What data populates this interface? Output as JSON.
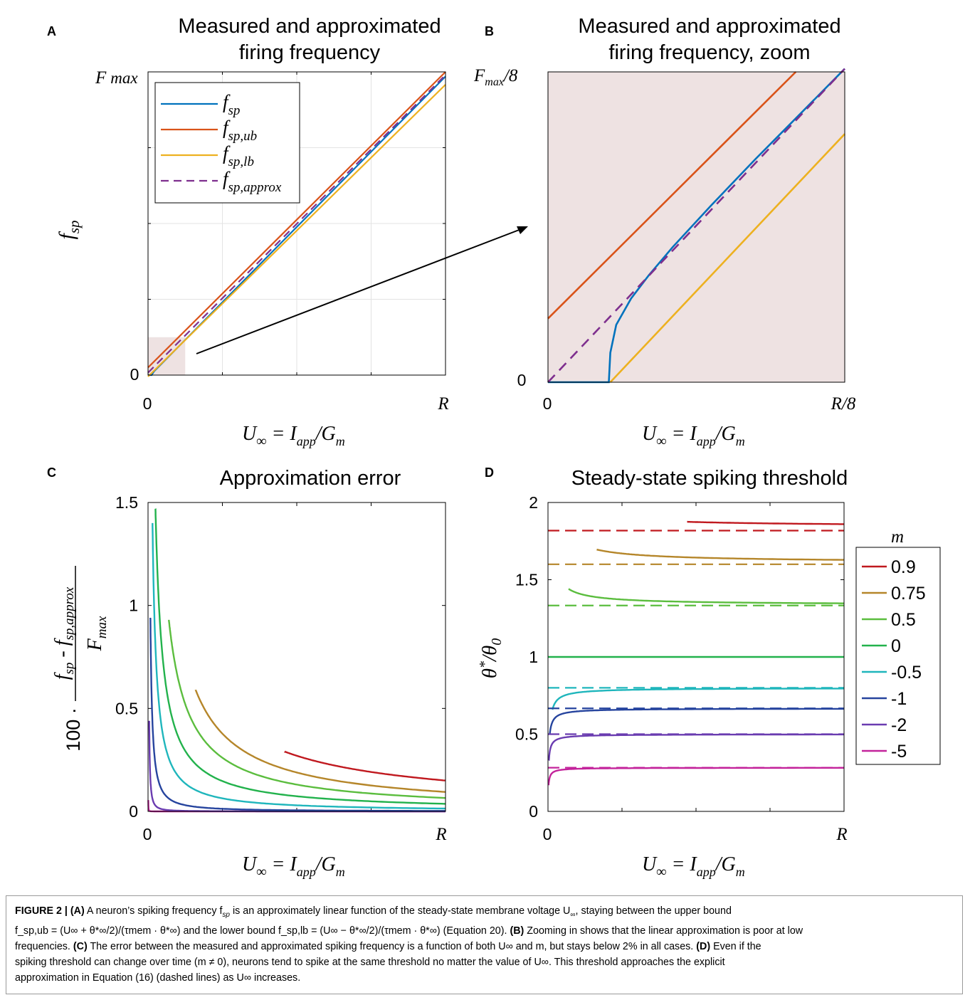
{
  "colors": {
    "blue": "#0072BD",
    "orange": "#D95319",
    "yellow": "#EDB120",
    "purple": "#7E2F8E",
    "shade": "#eee2e2",
    "m09": "#C0191F",
    "m075": "#B5862A",
    "m05": "#5BBD3E",
    "m0": "#22B24C",
    "m_05": "#1FB6BC",
    "m_1": "#26449E",
    "m_2": "#6A3CB0",
    "m_5": "#C3239B"
  },
  "chart_data": [
    {
      "panel": "A",
      "type": "line",
      "title": [
        "Measured and approximated",
        "firing frequency"
      ],
      "xlabel": "U∞ = Iapp/Gm",
      "ylabel": "fsp",
      "x_ticks": [
        "0",
        "R"
      ],
      "y_ticks": [
        "0",
        "Fmax"
      ],
      "xlim": [
        0,
        1
      ],
      "ylim": [
        0,
        1
      ],
      "grid": true,
      "legend": "top-left",
      "series": [
        {
          "name": "fsp",
          "color": "blue",
          "x": [
            0,
            0.012,
            0.02,
            1
          ],
          "y": [
            0,
            0,
            0.012,
            0.985
          ]
        },
        {
          "name": "fsp,ub",
          "color": "orange",
          "x": [
            0,
            1
          ],
          "y": [
            0.025,
            1.0
          ]
        },
        {
          "name": "fsp,lb",
          "color": "yellow",
          "x": [
            0,
            1
          ],
          "y": [
            -0.005,
            0.958
          ]
        },
        {
          "name": "fsp,approx",
          "color": "purple",
          "dashed": true,
          "x": [
            0,
            1
          ],
          "y": [
            0.008,
            0.99
          ]
        }
      ],
      "zoom_region": {
        "x": [
          0,
          0.125
        ],
        "y": [
          0,
          0.125
        ]
      }
    },
    {
      "panel": "B",
      "type": "line",
      "title": [
        "Measured and approximated",
        "firing frequency, zoom"
      ],
      "xlabel": "U∞ = Iapp/Gm",
      "x_ticks": [
        "0",
        "R/8"
      ],
      "y_ticks": [
        "0",
        "Fmax/8"
      ],
      "xlim": [
        0,
        1
      ],
      "ylim": [
        0,
        1
      ],
      "series": [
        {
          "name": "fsp",
          "color": "blue",
          "x": [
            0,
            0.205,
            0.21,
            0.23,
            0.28,
            0.34,
            0.42,
            0.55,
            0.7,
            0.85,
            1.0
          ],
          "y": [
            0,
            0,
            0.095,
            0.185,
            0.27,
            0.345,
            0.435,
            0.57,
            0.72,
            0.865,
            1.01
          ]
        },
        {
          "name": "fsp,ub",
          "color": "orange",
          "x": [
            0,
            0.835
          ],
          "y": [
            0.205,
            1.0
          ]
        },
        {
          "name": "fsp,lb",
          "color": "yellow",
          "x": [
            0.21,
            1.0
          ],
          "y": [
            0,
            0.8
          ]
        },
        {
          "name": "fsp,approx",
          "color": "purple",
          "dashed": true,
          "x": [
            0,
            1.0
          ],
          "y": [
            0,
            1.01
          ]
        }
      ]
    },
    {
      "panel": "C",
      "type": "line",
      "title": "Approximation error",
      "xlabel": "U∞ = Iapp/Gm",
      "ylabel": "100 · (fsp - fsp,approx) / Fmax",
      "x_ticks": [
        "0",
        "R"
      ],
      "y_ticks": [
        "0",
        "0.5",
        "1",
        "1.5"
      ],
      "xlim": [
        0,
        1
      ],
      "ylim": [
        0,
        1.5
      ],
      "series": [
        {
          "name": "0.9",
          "color": "m09",
          "x0": 0.46,
          "c": 0.29,
          "p": 0.85
        },
        {
          "name": "0.75",
          "color": "m075",
          "x0": 0.16,
          "c": 0.59,
          "p": 1.0
        },
        {
          "name": "0.5",
          "color": "m05",
          "x0": 0.07,
          "c": 0.93,
          "p": 1.0
        },
        {
          "name": "0",
          "color": "m0",
          "x0": 0.025,
          "c": 1.47,
          "p": 1.0
        },
        {
          "name": "-0.5",
          "color": "m_05",
          "x0": 0.015,
          "c": 1.4,
          "p": 1.1
        },
        {
          "name": "-1",
          "color": "m_1",
          "x0": 0.008,
          "c": 0.94,
          "p": 1.25
        },
        {
          "name": "-2",
          "color": "m_2",
          "x0": 0.004,
          "c": 0.44,
          "p": 1.5
        },
        {
          "name": "-5",
          "color": "m_5",
          "x0": 0.001,
          "c": 0.055,
          "p": 2.0
        }
      ]
    },
    {
      "panel": "D",
      "type": "line",
      "title": "Steady-state spiking threshold",
      "xlabel": "U∞ = Iapp/Gm",
      "ylabel": "θ*/θ0",
      "x_ticks": [
        "0",
        "R"
      ],
      "y_ticks": [
        "0",
        "0.5",
        "1",
        "1.5",
        "2"
      ],
      "xlim": [
        0,
        1
      ],
      "ylim": [
        0,
        2
      ],
      "legend_title": "m",
      "legend": "right",
      "series": [
        {
          "name": "0.9",
          "color": "m09",
          "asymptote": 1.818,
          "x0": 0.47,
          "y0": 1.875,
          "y1": 1.843
        },
        {
          "name": "0.75",
          "color": "m075",
          "asymptote": 1.6,
          "x0": 0.165,
          "y0": 1.695,
          "y1": 1.61
        },
        {
          "name": "0.5",
          "color": "m05",
          "asymptote": 1.333,
          "x0": 0.07,
          "y0": 1.44,
          "y1": 1.336
        },
        {
          "name": "0",
          "color": "m0",
          "asymptote": 1.0,
          "x0": 0.0,
          "y0": 1.0,
          "y1": 1.0
        },
        {
          "name": "-0.5",
          "color": "m_05",
          "asymptote": 0.8,
          "x0": 0.015,
          "y0": 0.66,
          "y1": 0.8
        },
        {
          "name": "-1",
          "color": "m_1",
          "asymptote": 0.667,
          "x0": 0.006,
          "y0": 0.5,
          "y1": 0.667
        },
        {
          "name": "-2",
          "color": "m_2",
          "asymptote": 0.5,
          "x0": 0.003,
          "y0": 0.33,
          "y1": 0.5
        },
        {
          "name": "-5",
          "color": "m_5",
          "asymptote": 0.283,
          "x0": 0.002,
          "y0": 0.17,
          "y1": 0.283
        }
      ]
    }
  ],
  "panel_labels": {
    "A": "A",
    "B": "B",
    "C": "C",
    "D": "D"
  },
  "caption": {
    "lead": "FIGURE 2 | ",
    "a_tag": "(A)",
    "a_text": " A neuron’s spiking frequency f",
    "a_text2": " is an approximately linear function of the steady-state membrane voltage U",
    "a_text3": ", staying between the upper bound",
    "line2": "f_sp,ub = (U∞ + θ*∞/2)/(τmem · θ*∞) and the lower bound f_sp,lb = (U∞ − θ*∞/2)/(τmem · θ*∞) (Equation 20).",
    "b_tag": "(B)",
    "b_text": " Zooming in shows that the linear approximation is poor at low",
    "line3": "frequencies.",
    "c_tag": "(C)",
    "c_text": " The error between the measured and approximated spiking frequency is a function of both U∞ and m, but stays below 2% in all cases.",
    "d_tag": "(D)",
    "d_text": " Even if the",
    "line4": "spiking threshold can change over time (m ≠ 0), neurons tend to spike at the same threshold no matter the value of U∞. This threshold approaches the explicit",
    "line5": "approximation in Equation (16) (dashed lines) as U∞ increases."
  }
}
